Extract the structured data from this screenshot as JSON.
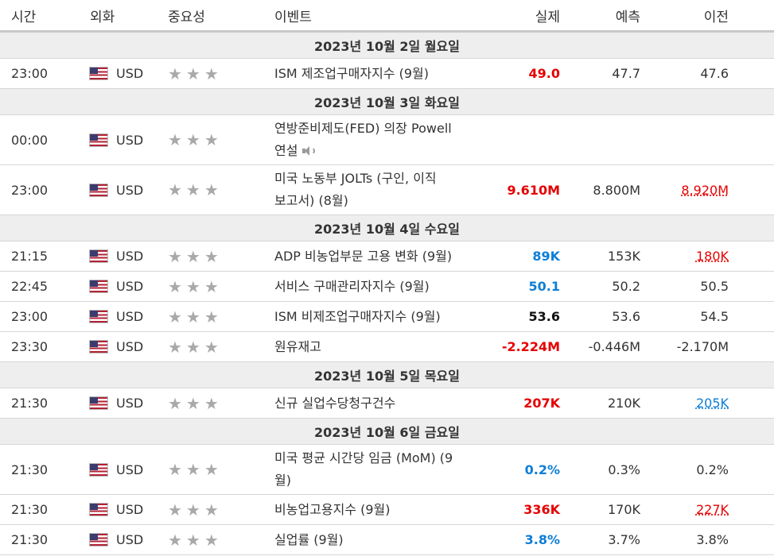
{
  "headers": {
    "time": "시간",
    "currency": "외화",
    "importance": "중요성",
    "event": "이벤트",
    "actual": "실제",
    "forecast": "예측",
    "previous": "이전"
  },
  "currency_label": "USD",
  "importance_stars": "★★★",
  "dates": [
    {
      "label": "2023년 10월 2일 월요일"
    },
    {
      "label": "2023년 10월 3일 화요일"
    },
    {
      "label": "2023년 10월 4일 수요일"
    },
    {
      "label": "2023년 10월 5일 목요일"
    },
    {
      "label": "2023년 10월 6일 금요일"
    }
  ],
  "events": [
    {
      "time": "23:00",
      "event_line1": "ISM 제조업구매자지수 (9월)",
      "event_line2": "",
      "actual": "49.0",
      "forecast": "47.7",
      "previous": "47.6"
    },
    {
      "time": "00:00",
      "event_line1": "연방준비제도(FED) 의장 Powell",
      "event_line2": "연설",
      "actual": "",
      "forecast": "",
      "previous": ""
    },
    {
      "time": "23:00",
      "event_line1": "미국 노동부 JOLTs (구인, 이직",
      "event_line2": "보고서) (8월)",
      "actual": "9.610M",
      "forecast": "8.800M",
      "previous": "8.920M"
    },
    {
      "time": "21:15",
      "event_line1": "ADP 비농업부문 고용 변화 (9월)",
      "event_line2": "",
      "actual": "89K",
      "forecast": "153K",
      "previous": "180K"
    },
    {
      "time": "22:45",
      "event_line1": "서비스 구매관리자지수 (9월)",
      "event_line2": "",
      "actual": "50.1",
      "forecast": "50.2",
      "previous": "50.5"
    },
    {
      "time": "23:00",
      "event_line1": "ISM 비제조업구매자지수 (9월)",
      "event_line2": "",
      "actual": "53.6",
      "forecast": "53.6",
      "previous": "54.5"
    },
    {
      "time": "23:30",
      "event_line1": "원유재고",
      "event_line2": "",
      "actual": "-2.224M",
      "forecast": "-0.446M",
      "previous": "-2.170M"
    },
    {
      "time": "21:30",
      "event_line1": "신규 실업수당청구건수",
      "event_line2": "",
      "actual": "207K",
      "forecast": "210K",
      "previous": "205K"
    },
    {
      "time": "21:30",
      "event_line1": "미국 평균 시간당 임금 (MoM) (9",
      "event_line2": "월)",
      "actual": "0.2%",
      "forecast": "0.3%",
      "previous": "0.2%"
    },
    {
      "time": "21:30",
      "event_line1": "비농업고용지수 (9월)",
      "event_line2": "",
      "actual": "336K",
      "forecast": "170K",
      "previous": "227K"
    },
    {
      "time": "21:30",
      "event_line1": "실업률 (9월)",
      "event_line2": "",
      "actual": "3.8%",
      "forecast": "3.7%",
      "previous": "3.8%"
    }
  ],
  "colors": {
    "red": "#e60000",
    "blue": "#0e7ed6",
    "date_row_bg": "#eeeeee",
    "star": "#a9a9a9"
  }
}
